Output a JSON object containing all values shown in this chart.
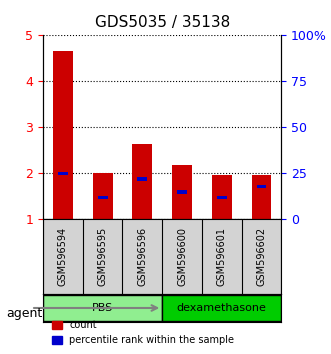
{
  "title": "GDS5035 / 35138",
  "samples": [
    "GSM596594",
    "GSM596595",
    "GSM596596",
    "GSM596600",
    "GSM596601",
    "GSM596602"
  ],
  "count_values": [
    4.67,
    2.0,
    2.63,
    2.18,
    1.97,
    1.97
  ],
  "percentile_values": [
    25,
    12,
    22,
    15,
    12,
    18
  ],
  "ylim_left": [
    1,
    5
  ],
  "ylim_right": [
    0,
    100
  ],
  "yticks_left": [
    1,
    2,
    3,
    4,
    5
  ],
  "yticks_right": [
    0,
    25,
    50,
    75,
    100
  ],
  "ytick_labels_left": [
    "1",
    "2",
    "3",
    "4",
    "5"
  ],
  "ytick_labels_right": [
    "0",
    "25",
    "50",
    "75",
    "100%"
  ],
  "groups": [
    {
      "label": "PBS",
      "samples": [
        0,
        1,
        2
      ],
      "color": "#90ee90"
    },
    {
      "label": "dexamethasone",
      "samples": [
        3,
        4,
        5
      ],
      "color": "#00cc00"
    }
  ],
  "bar_color": "#cc0000",
  "percentile_color": "#0000cc",
  "bar_width": 0.5,
  "grid_style": "dotted",
  "background_plot": "#ffffff",
  "background_labels": "#d3d3d3",
  "agent_label": "agent",
  "legend_items": [
    "count",
    "percentile rank within the sample"
  ]
}
